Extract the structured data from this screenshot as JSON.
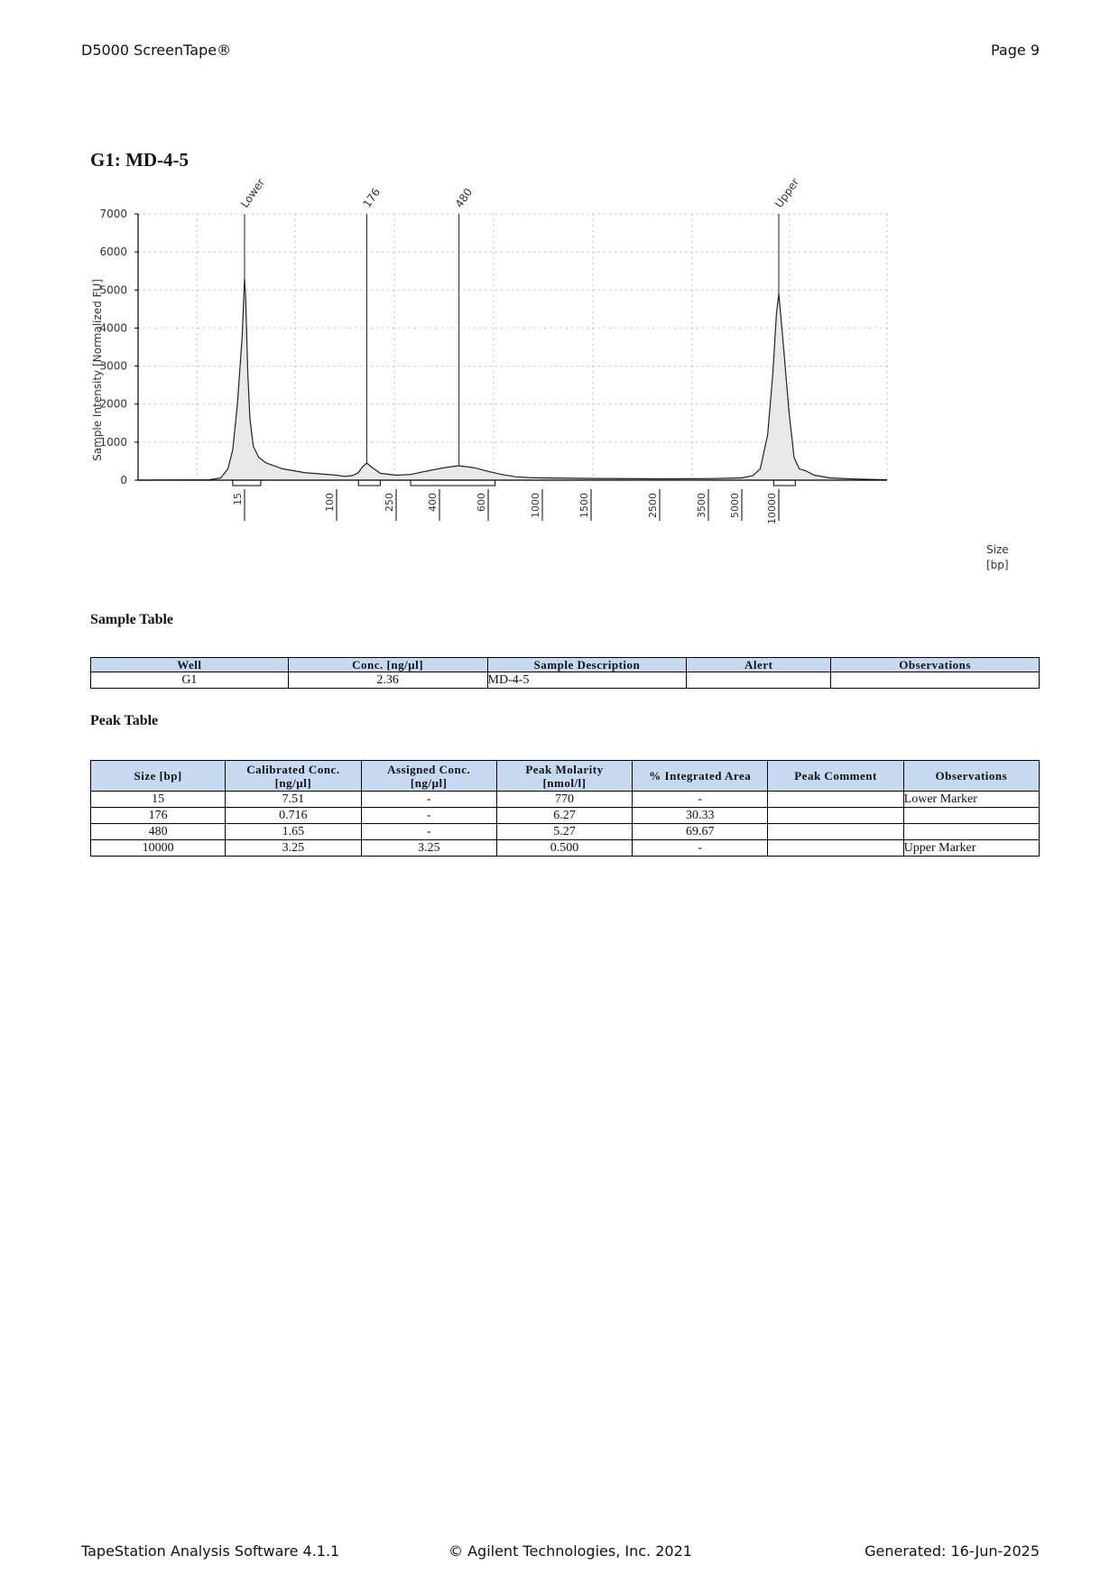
{
  "header": {
    "left": "D5000 ScreenTape®",
    "right": "Page 9"
  },
  "title": "G1: MD-4-5",
  "chart_data": {
    "type": "line",
    "ylabel": "Sample Intensity [Normalized FU]",
    "xlabel": "Size [bp]",
    "ylim": [
      0,
      7000
    ],
    "yticks": [
      0,
      1000,
      2000,
      3000,
      4000,
      5000,
      6000,
      7000
    ],
    "xtick_labels": [
      "15",
      "100",
      "250",
      "400",
      "600",
      "1000",
      "1500",
      "2500",
      "3500",
      "5000",
      "10000"
    ],
    "x_scale": "log (ladder-calibrated)",
    "grid": true,
    "peaks": [
      {
        "label": "Lower",
        "size": 15,
        "intensity": 5300
      },
      {
        "label": "176",
        "size": 176,
        "intensity": 450
      },
      {
        "label": "480",
        "size": 480,
        "intensity": 380
      },
      {
        "label": "Upper",
        "size": 10000,
        "intensity": 4900
      }
    ],
    "series": [
      {
        "values": [
          [
            -30,
            0
          ],
          [
            0,
            10
          ],
          [
            5,
            60
          ],
          [
            8,
            300
          ],
          [
            10,
            800
          ],
          [
            12,
            2000
          ],
          [
            14,
            3800
          ],
          [
            15,
            5300
          ],
          [
            16,
            4800
          ],
          [
            17,
            3800
          ],
          [
            18,
            2800
          ],
          [
            20,
            1600
          ],
          [
            23,
            900
          ],
          [
            28,
            600
          ],
          [
            35,
            450
          ],
          [
            50,
            300
          ],
          [
            70,
            200
          ],
          [
            100,
            130
          ],
          [
            120,
            100
          ],
          [
            140,
            120
          ],
          [
            155,
            200
          ],
          [
            165,
            350
          ],
          [
            176,
            450
          ],
          [
            190,
            330
          ],
          [
            210,
            180
          ],
          [
            250,
            130
          ],
          [
            300,
            150
          ],
          [
            350,
            230
          ],
          [
            420,
            330
          ],
          [
            480,
            380
          ],
          [
            540,
            330
          ],
          [
            600,
            230
          ],
          [
            700,
            150
          ],
          [
            800,
            90
          ],
          [
            900,
            70
          ],
          [
            1000,
            60
          ],
          [
            1500,
            45
          ],
          [
            2500,
            35
          ],
          [
            3500,
            40
          ],
          [
            5000,
            60
          ],
          [
            6500,
            120
          ],
          [
            7500,
            300
          ],
          [
            8500,
            1200
          ],
          [
            9200,
            2800
          ],
          [
            9700,
            4400
          ],
          [
            10000,
            4900
          ],
          [
            10300,
            3800
          ],
          [
            10800,
            1800
          ],
          [
            11200,
            600
          ],
          [
            11600,
            300
          ],
          [
            12100,
            250
          ],
          [
            12800,
            130
          ],
          [
            14000,
            60
          ],
          [
            16000,
            30
          ],
          [
            18500,
            10
          ]
        ]
      }
    ],
    "integration_regions": [
      [
        10,
        30
      ],
      [
        155,
        210
      ],
      [
        300,
        650
      ],
      [
        9300,
        11300
      ]
    ]
  },
  "sample_table": {
    "title": "Sample Table",
    "headers": [
      "Well",
      "Conc. [ng/µl]",
      "Sample Description",
      "Alert",
      "Observations"
    ],
    "rows": [
      [
        "G1",
        "2.36",
        "MD-4-5",
        "",
        ""
      ]
    ]
  },
  "peak_table": {
    "title": "Peak Table",
    "headers": [
      [
        "Size [bp]"
      ],
      [
        "Calibrated Conc.",
        "[ng/µl]"
      ],
      [
        "Assigned Conc.",
        "[ng/µl]"
      ],
      [
        "Peak Molarity",
        "[nmol/l]"
      ],
      [
        "% Integrated Area"
      ],
      [
        "Peak Comment"
      ],
      [
        "Observations"
      ]
    ],
    "rows": [
      [
        "15",
        "7.51",
        "-",
        "770",
        "-",
        "",
        "Lower Marker"
      ],
      [
        "176",
        "0.716",
        "-",
        "6.27",
        "30.33",
        "",
        ""
      ],
      [
        "480",
        "1.65",
        "-",
        "5.27",
        "69.67",
        "",
        ""
      ],
      [
        "10000",
        "3.25",
        "3.25",
        "0.500",
        "-",
        "",
        "Upper Marker"
      ]
    ]
  },
  "footer": {
    "left": "TapeStation Analysis Software 4.1.1",
    "center": "© Agilent Technologies, Inc. 2021",
    "right": "Generated: 16-Jun-2025"
  }
}
